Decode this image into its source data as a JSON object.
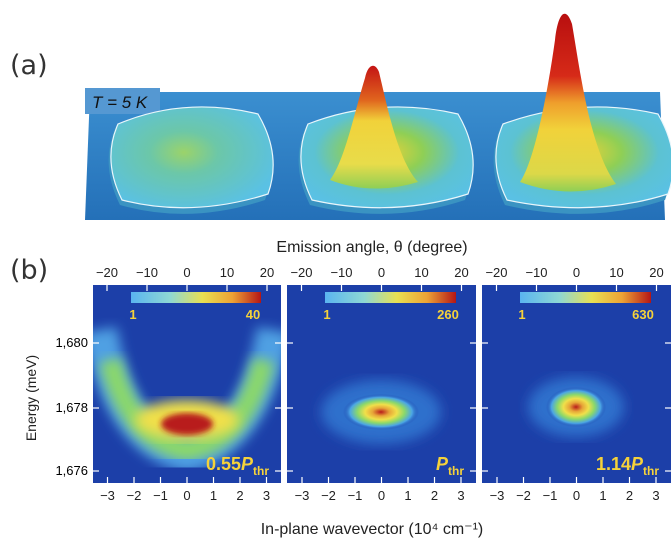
{
  "panel_a": {
    "label": "(a)",
    "temperature": "T = 5 K",
    "colors": {
      "background": "#2f86c8",
      "plateau": "#5dc3e6",
      "peak": "#d01c1c"
    }
  },
  "panel_b": {
    "label": "(b)",
    "top_axis_title": "Emission angle, θ (degree)",
    "bottom_axis_title": "In-plane wavevector (10⁴ cm⁻¹)",
    "y_axis_title": "Energy (meV)",
    "top_ticks": [
      "−20",
      "−10",
      "0",
      "10",
      "20"
    ],
    "bottom_ticks": [
      "−3",
      "−2",
      "−1",
      "0",
      "1",
      "2",
      "3"
    ],
    "y_ticks": [
      "1,680",
      "1,678",
      "1,676"
    ],
    "subplots": [
      {
        "power": "0.55",
        "power_unit_main": "P",
        "power_unit_sub": "thr",
        "cbar_min": "1",
        "cbar_max": "40"
      },
      {
        "power": "",
        "power_unit_main": "P",
        "power_unit_sub": "thr",
        "cbar_min": "1",
        "cbar_max": "260"
      },
      {
        "power": "1.14",
        "power_unit_main": "P",
        "power_unit_sub": "thr",
        "cbar_min": "1",
        "cbar_max": "630"
      }
    ],
    "colors": {
      "background": "#1c3fa8",
      "label": "#f5d23a"
    }
  }
}
